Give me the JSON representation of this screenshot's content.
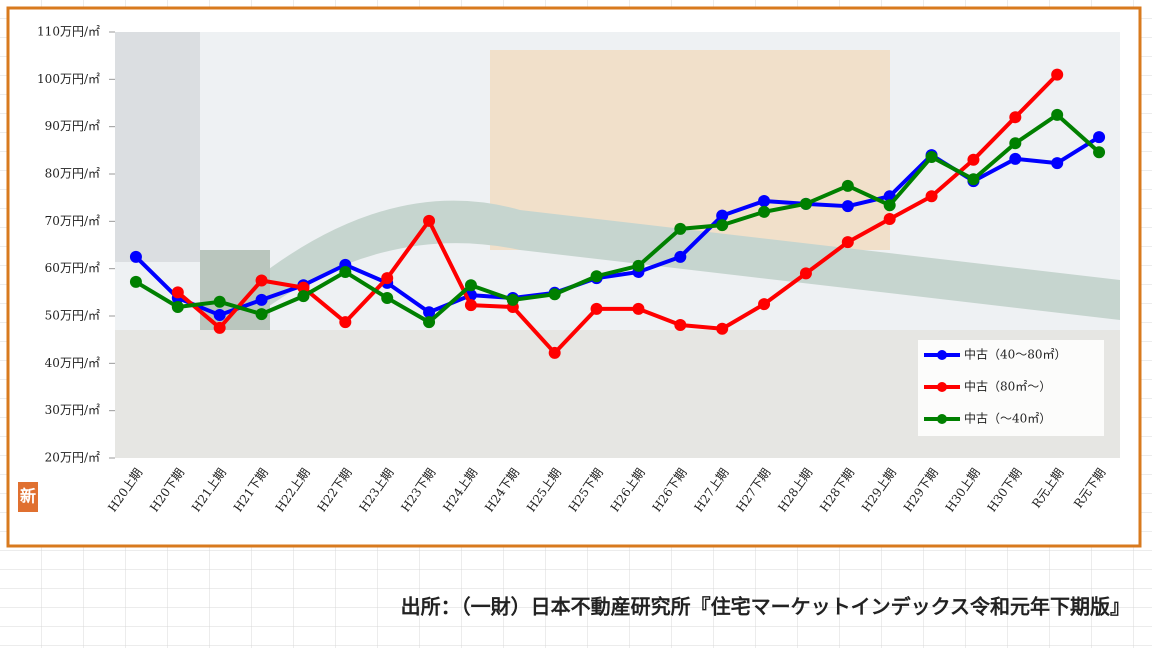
{
  "chart_data": {
    "type": "line",
    "categories": [
      "H20上期",
      "H20下期",
      "H21上期",
      "H21下期",
      "H22上期",
      "H22下期",
      "H23上期",
      "H23下期",
      "H24上期",
      "H24下期",
      "H25上期",
      "H25下期",
      "H26上期",
      "H26下期",
      "H27上期",
      "H27下期",
      "H28上期",
      "H28下期",
      "H29上期",
      "H29下期",
      "H30上期",
      "H30下期",
      "R元上期",
      "R元下期"
    ],
    "series": [
      {
        "name": "中古（40～80㎡）",
        "color": "#0000ff",
        "values": [
          62.5,
          53.8,
          50.2,
          53.4,
          56.5,
          60.8,
          57,
          50.8,
          54.4,
          53.8,
          54.9,
          58,
          59.3,
          62.5,
          71.2,
          74.3,
          73.7,
          73.2,
          75.3,
          84,
          78.5,
          83.2,
          82.3,
          87.8
        ]
      },
      {
        "name": "中古（80㎡～）",
        "color": "#ff0000",
        "values": [
          null,
          55,
          47.5,
          57.5,
          56,
          48.7,
          58,
          70.1,
          52.3,
          51.9,
          42.2,
          51.5,
          51.5,
          48.1,
          47.3,
          52.5,
          59,
          65.6,
          70.5,
          75.3,
          83,
          92,
          101,
          null
        ]
      },
      {
        "name": "中古（～40㎡）",
        "color": "#008000",
        "values": [
          57.2,
          51.9,
          53,
          50.4,
          54.2,
          59.3,
          53.8,
          48.7,
          56.5,
          53.4,
          54.6,
          58.4,
          60.6,
          68.4,
          69.2,
          72,
          73.7,
          77.5,
          73.4,
          83.6,
          78.9,
          86.5,
          92.5,
          84.6
        ]
      }
    ],
    "ylim": [
      20,
      110
    ],
    "yticks": [
      {
        "value": 20,
        "label": "20万円/㎡"
      },
      {
        "value": 30,
        "label": "30万円/㎡"
      },
      {
        "value": 40,
        "label": "40万円/㎡"
      },
      {
        "value": 50,
        "label": "50万円/㎡"
      },
      {
        "value": 60,
        "label": "60万円/㎡"
      },
      {
        "value": 70,
        "label": "70万円/㎡"
      },
      {
        "value": 80,
        "label": "80万円/㎡"
      },
      {
        "value": 90,
        "label": "90万円/㎡"
      },
      {
        "value": 100,
        "label": "100万円/㎡"
      },
      {
        "value": 110,
        "label": "110万円/㎡"
      }
    ],
    "legend": "bottom-right",
    "badge": "新",
    "source": "出所：（一財）日本不動産研究所『住宅マーケットインデックス令和元年下期版』"
  }
}
